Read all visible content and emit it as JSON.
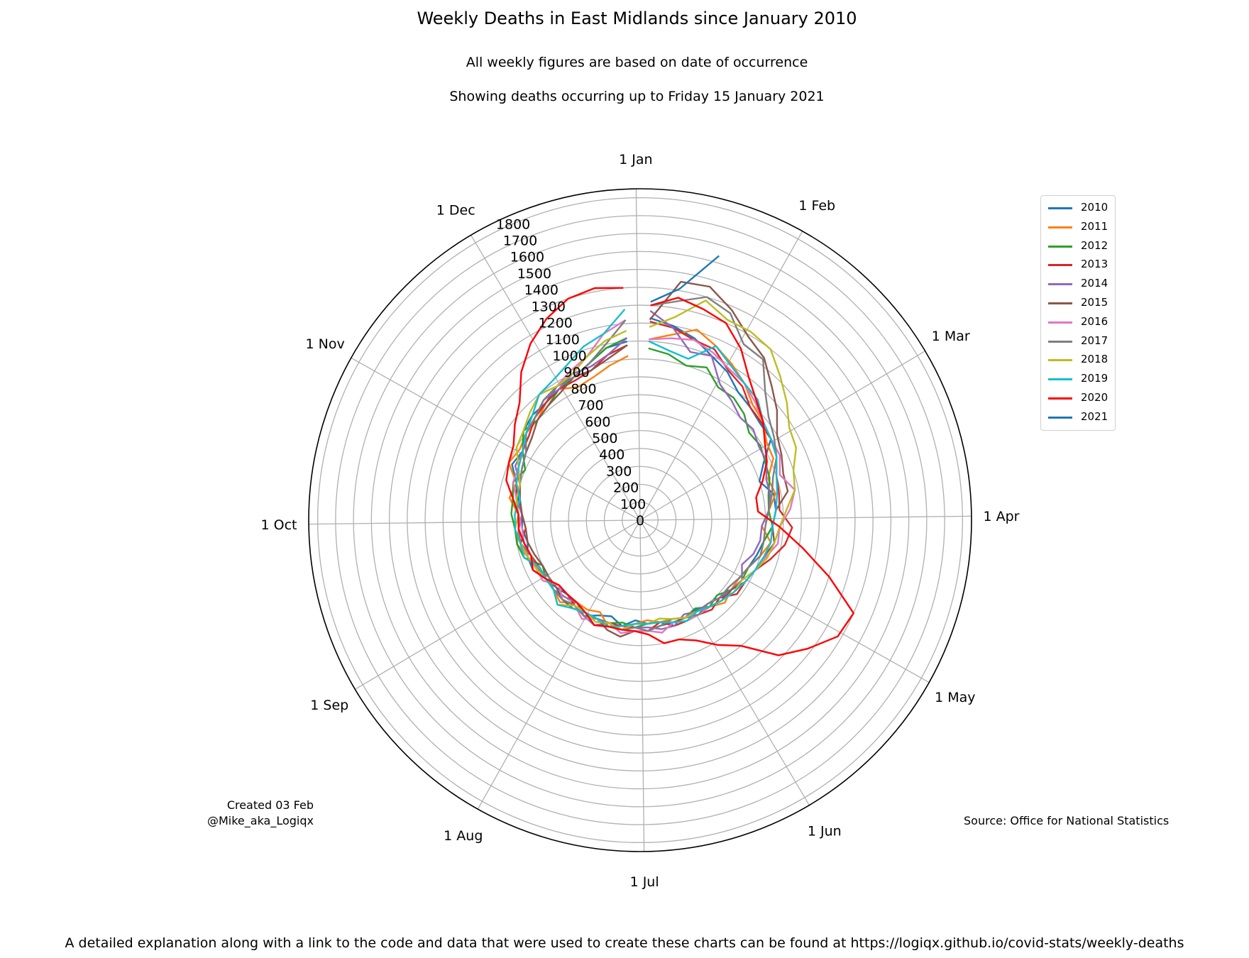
{
  "header": {
    "title": "Weekly Deaths in East Midlands since January 2010",
    "subtitle1": "All weekly figures are based on date of occurrence",
    "subtitle2": "Showing deaths occurring up to Friday 15 January 2021"
  },
  "credits": {
    "created_line1": "Created 03 Feb",
    "created_line2": "@Mike_aka_Logiqx",
    "source": "Source: Office for National Statistics",
    "footnote": "A detailed explanation along with a link to the code and data that were used to create these charts can be found at https://logiqx.github.io/covid-stats/weekly-deaths"
  },
  "chart_data": {
    "type": "line",
    "projection": "polar",
    "r_ticks": [
      0,
      100,
      200,
      300,
      400,
      500,
      600,
      700,
      800,
      900,
      1000,
      1100,
      1200,
      1300,
      1400,
      1500,
      1600,
      1700,
      1800
    ],
    "r_max": 1850,
    "month_labels": [
      "1 Jan",
      "1 Feb",
      "1 Mar",
      "1 Apr",
      "1 May",
      "1 Jun",
      "1 Jul",
      "1 Aug",
      "1 Sep",
      "1 Oct",
      "1 Nov",
      "1 Dec"
    ],
    "grid": true,
    "legend_position": "top-right",
    "series": [
      {
        "name": "2010",
        "color": "#1f77b4",
        "values": [
          1130,
          1100,
          1060,
          1000,
          960,
          900,
          880,
          860,
          860,
          760,
          700,
          760,
          760,
          740,
          700,
          680,
          660,
          640,
          620,
          640,
          620,
          590,
          600,
          600,
          580,
          580,
          560,
          600,
          560,
          580,
          620,
          580,
          580,
          600,
          620,
          660,
          660,
          640,
          660,
          660,
          690,
          720,
          780,
          760,
          820,
          840,
          840,
          880,
          880,
          920,
          980,
          1000
        ]
      },
      {
        "name": "2011",
        "color": "#ff7f0e",
        "values": [
          1010,
          1050,
          1110,
          1060,
          1010,
          960,
          900,
          880,
          830,
          820,
          750,
          770,
          720,
          680,
          740,
          700,
          660,
          640,
          640,
          660,
          620,
          600,
          600,
          580,
          580,
          560,
          580,
          600,
          620,
          560,
          580,
          580,
          640,
          620,
          620,
          630,
          660,
          700,
          680,
          680,
          740,
          720,
          800,
          780,
          800,
          800,
          840,
          860,
          820,
          840,
          880,
          920
        ]
      },
      {
        "name": "2012",
        "color": "#2ca02c",
        "values": [
          960,
          940,
          900,
          930,
          860,
          860,
          830,
          780,
          790,
          770,
          760,
          730,
          720,
          740,
          700,
          700,
          660,
          660,
          640,
          600,
          620,
          580,
          600,
          600,
          580,
          580,
          600,
          580,
          600,
          600,
          600,
          620,
          620,
          620,
          620,
          600,
          680,
          700,
          700,
          720,
          720,
          740,
          700,
          760,
          820,
          800,
          820,
          860,
          880,
          920,
          980,
          1020
        ]
      },
      {
        "name": "2013",
        "color": "#d62728",
        "values": [
          1110,
          1090,
          1050,
          1040,
          970,
          940,
          880,
          870,
          860,
          840,
          800,
          790,
          780,
          850,
          820,
          760,
          700,
          680,
          680,
          620,
          640,
          620,
          620,
          620,
          580,
          620,
          600,
          600,
          600,
          600,
          620,
          600,
          580,
          580,
          620,
          620,
          640,
          680,
          640,
          660,
          700,
          720,
          740,
          760,
          780,
          820,
          840,
          860,
          860,
          880,
          940,
          980
        ]
      },
      {
        "name": "2014",
        "color": "#9467bd",
        "values": [
          1170,
          1090,
          980,
          1000,
          880,
          840,
          800,
          810,
          780,
          780,
          740,
          740,
          720,
          680,
          680,
          660,
          620,
          660,
          640,
          620,
          600,
          600,
          580,
          620,
          620,
          600,
          600,
          620,
          600,
          640,
          620,
          580,
          600,
          620,
          600,
          640,
          640,
          680,
          680,
          660,
          700,
          700,
          760,
          760,
          800,
          820,
          860,
          860,
          900,
          900,
          940,
          1020
        ]
      },
      {
        "name": "2015",
        "color": "#8c564b",
        "values": [
          1120,
          1350,
          1360,
          1280,
          1190,
          1140,
          1050,
          980,
          900,
          870,
          840,
          840,
          760,
          740,
          760,
          720,
          700,
          680,
          640,
          640,
          620,
          620,
          600,
          600,
          600,
          620,
          620,
          660,
          640,
          600,
          600,
          620,
          620,
          600,
          600,
          600,
          620,
          640,
          640,
          660,
          680,
          700,
          720,
          740,
          760,
          800,
          820,
          840,
          880,
          880,
          920,
          980
        ]
      },
      {
        "name": "2016",
        "color": "#e377c2",
        "values": [
          1010,
          1030,
          1050,
          1020,
          980,
          960,
          920,
          880,
          860,
          860,
          820,
          880,
          840,
          780,
          780,
          730,
          700,
          680,
          660,
          640,
          620,
          620,
          620,
          600,
          640,
          620,
          620,
          640,
          600,
          600,
          640,
          600,
          620,
          580,
          640,
          640,
          660,
          660,
          660,
          680,
          700,
          740,
          740,
          760,
          800,
          820,
          860,
          880,
          920,
          960,
          1060,
          1120
        ]
      },
      {
        "name": "2017",
        "color": "#7f7f7f",
        "values": [
          1200,
          1240,
          1300,
          1260,
          1140,
          1130,
          1000,
          920,
          880,
          840,
          780,
          750,
          720,
          700,
          700,
          700,
          660,
          640,
          620,
          620,
          600,
          620,
          600,
          580,
          600,
          620,
          600,
          620,
          600,
          600,
          620,
          600,
          620,
          620,
          600,
          640,
          640,
          680,
          680,
          680,
          700,
          700,
          720,
          740,
          800,
          820,
          860,
          880,
          880,
          920,
          1000,
          1120
        ]
      },
      {
        "name": "2018",
        "color": "#bcbd22",
        "values": [
          1080,
          1150,
          1280,
          1220,
          1220,
          1200,
          1120,
          1050,
          980,
          960,
          900,
          880,
          820,
          780,
          760,
          740,
          700,
          660,
          660,
          640,
          620,
          600,
          600,
          580,
          560,
          580,
          580,
          620,
          600,
          620,
          600,
          600,
          660,
          620,
          620,
          640,
          660,
          680,
          700,
          680,
          700,
          700,
          740,
          800,
          820,
          860,
          900,
          880,
          900,
          960,
          1020,
          1060
        ]
      },
      {
        "name": "2019",
        "color": "#17becf",
        "values": [
          1000,
          960,
          940,
          1060,
          1000,
          960,
          940,
          880,
          860,
          840,
          800,
          780,
          760,
          740,
          740,
          720,
          700,
          680,
          660,
          640,
          620,
          600,
          620,
          600,
          580,
          580,
          580,
          600,
          620,
          600,
          600,
          620,
          660,
          620,
          620,
          620,
          680,
          680,
          700,
          700,
          680,
          720,
          740,
          760,
          800,
          840,
          900,
          920,
          960,
          1020,
          1060,
          1180
        ]
      },
      {
        "name": "2020",
        "color": "#ff0000",
        "values": [
          1200,
          1260,
          1230,
          1200,
          1110,
          1000,
          930,
          880,
          820,
          780,
          720,
          660,
          660,
          780,
          920,
          1100,
          1300,
          1280,
          1180,
          1080,
          900,
          820,
          740,
          700,
          700,
          640,
          620,
          620,
          620,
          640,
          600,
          580,
          580,
          580,
          620,
          660,
          640,
          660,
          680,
          680,
          720,
          780,
          800,
          820,
          880,
          940,
          1060,
          1160,
          1240,
          1300,
          1320,
          1300
        ]
      },
      {
        "name": "2021",
        "color": "#1f77b4",
        "values": [
          1220,
          1310,
          1540
        ]
      }
    ]
  }
}
